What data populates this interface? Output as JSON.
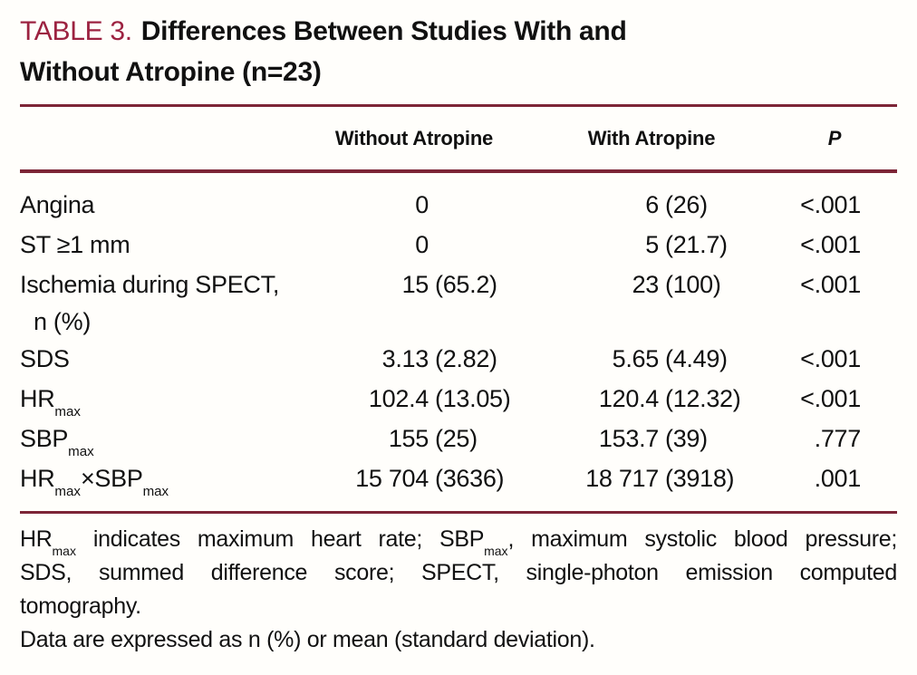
{
  "title": {
    "label": "TABLE 3.",
    "line1": "Differences Between Studies With and",
    "line2": "Without Atropine (n=23)"
  },
  "table": {
    "headers": {
      "without": "Without Atropine",
      "with": "With Atropine",
      "p": "P"
    },
    "rows": [
      {
        "label": [
          "Angina"
        ],
        "without_v": "0",
        "without_p": "",
        "with_v": "6",
        "with_p": "(26)",
        "p": "<.001"
      },
      {
        "label": [
          "ST ≥1 mm"
        ],
        "without_v": "0",
        "without_p": "",
        "with_v": "5",
        "with_p": "(21.7)",
        "p": "<.001"
      },
      {
        "label": [
          "Ischemia during SPECT,"
        ],
        "label_line2": "n (%)",
        "without_v": "15",
        "without_p": "(65.2)",
        "with_v": "23",
        "with_p": "(100)",
        "p": "<.001"
      },
      {
        "label": [
          "SDS"
        ],
        "without_v": "3.13",
        "without_p": "(2.82)",
        "with_v": "5.65",
        "with_p": "(4.49)",
        "p": "<.001"
      },
      {
        "label": [
          "HR",
          "max"
        ],
        "without_v": "102.4",
        "without_p": "(13.05)",
        "with_v": "120.4",
        "with_p": "(12.32)",
        "p": "<.001"
      },
      {
        "label": [
          "SBP",
          "max"
        ],
        "without_v": "155",
        "without_p": "(25)",
        "with_v": "153.7",
        "with_p": "(39)",
        "p": ".777"
      },
      {
        "label": [
          "HR",
          "max",
          "×SBP",
          "max"
        ],
        "without_v": "15 704",
        "without_p": "(3636)",
        "with_v": "18 717",
        "with_p": "(3918)",
        "p": ".001"
      }
    ]
  },
  "footnotes": {
    "f1_line1": [
      "HR",
      "max",
      " indicates maximum heart rate; SBP",
      "max",
      ", maximum systolic blood pressure;"
    ],
    "f1_line2": "SDS, summed difference score; SPECT, single-photon emission computed",
    "f1_line3": "tomography.",
    "f2": "Data are expressed as n (%) or mean (standard deviation)."
  },
  "colors": {
    "accent-red": "#9c2240",
    "rule-maroon": "#7d2537",
    "text": "#111111",
    "background": "#fffefb"
  }
}
